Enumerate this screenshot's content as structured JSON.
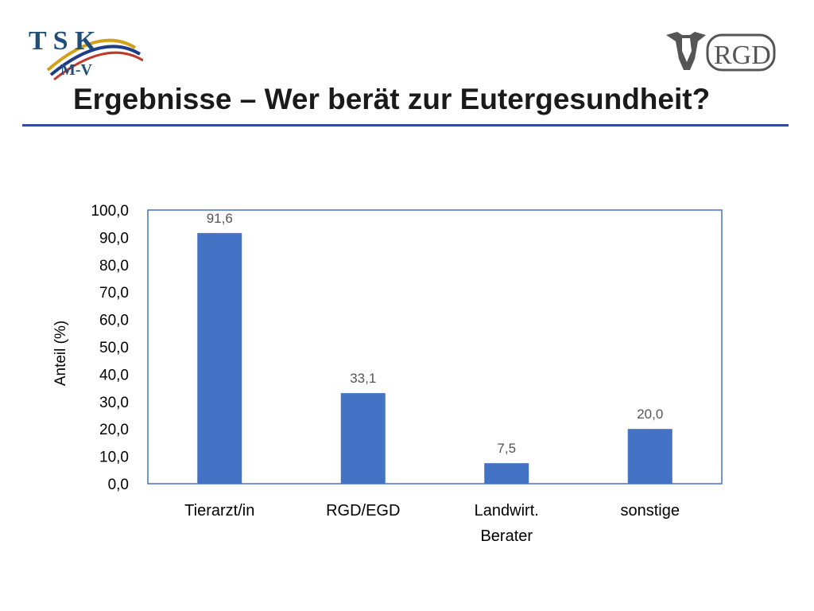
{
  "slide": {
    "title": "Ergebnisse – Wer berät zur Eutergesundheit?",
    "accent_color": "#2f4d9a"
  },
  "logos": {
    "left": {
      "text_top": "T S K",
      "text_bottom": "M-V"
    },
    "right": {
      "text": "RGD"
    }
  },
  "chart_data": {
    "type": "bar",
    "categories": [
      [
        "Tierarzt/in"
      ],
      [
        "RGD/EGD"
      ],
      [
        "Landwirt.",
        "Berater"
      ],
      [
        "sonstige"
      ]
    ],
    "values": [
      91.6,
      33.1,
      7.5,
      20.0
    ],
    "value_labels": [
      "91,6",
      "33,1",
      "7,5",
      "20,0"
    ],
    "ylabel": "Anteil (%)",
    "ylim": [
      0,
      100
    ],
    "yticks": [
      "0,0",
      "10,0",
      "20,0",
      "30,0",
      "40,0",
      "50,0",
      "60,0",
      "70,0",
      "80,0",
      "90,0",
      "100,0"
    ],
    "bar_color": "#4472c4",
    "frame_color": "#4472c4",
    "grid": false,
    "legend": "none"
  }
}
